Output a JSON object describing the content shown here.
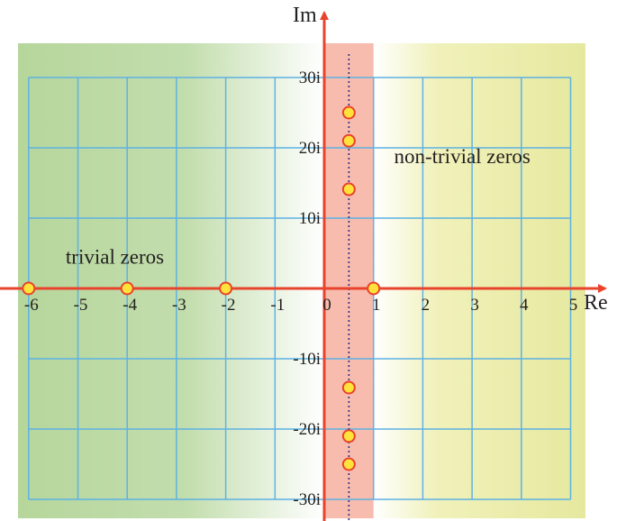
{
  "chart_data": {
    "type": "scatter",
    "title": "",
    "xlabel": "Re",
    "ylabel": "Im",
    "xlim": [
      -6,
      5
    ],
    "ylim": [
      -30,
      30
    ],
    "grid": true,
    "x_ticks": [
      {
        "value": -6,
        "label": "-6"
      },
      {
        "value": -5,
        "label": "-5"
      },
      {
        "value": -4,
        "label": "-4"
      },
      {
        "value": -3,
        "label": "-3"
      },
      {
        "value": -2,
        "label": "-2"
      },
      {
        "value": -1,
        "label": "-1"
      },
      {
        "value": 0,
        "label": "0"
      },
      {
        "value": 1,
        "label": "1"
      },
      {
        "value": 2,
        "label": "2"
      },
      {
        "value": 3,
        "label": "3"
      },
      {
        "value": 4,
        "label": "4"
      },
      {
        "value": 5,
        "label": "5"
      }
    ],
    "y_ticks": [
      {
        "value": 30,
        "label": "30i"
      },
      {
        "value": 20,
        "label": "20i"
      },
      {
        "value": 10,
        "label": "10i"
      },
      {
        "value": -10,
        "label": "-10i"
      },
      {
        "value": -20,
        "label": "-20i"
      },
      {
        "value": -30,
        "label": "-30i"
      }
    ],
    "regions": [
      {
        "name": "trivial-region",
        "x_range": [
          -6,
          0
        ],
        "color": "#a9cf8a"
      },
      {
        "name": "critical-strip",
        "x_range": [
          0,
          1
        ],
        "color": "#f4a593"
      },
      {
        "name": "non-trivial-region",
        "x_range": [
          1,
          5.3
        ],
        "color": "#eaeb9c"
      }
    ],
    "critical_line_x": 0.5,
    "series": [
      {
        "group": "trivial",
        "points": [
          [
            -6,
            0
          ],
          [
            -4,
            0
          ],
          [
            -2,
            0
          ]
        ]
      },
      {
        "group": "pole",
        "points": [
          [
            1,
            0
          ]
        ]
      },
      {
        "group": "non-trivial",
        "points": [
          [
            0.5,
            25.0
          ],
          [
            0.5,
            21.0
          ],
          [
            0.5,
            14.1
          ],
          [
            0.5,
            -14.1
          ],
          [
            0.5,
            -21.0
          ],
          [
            0.5,
            -25.0
          ]
        ]
      }
    ],
    "annotations": [
      {
        "text": "trivial zeros",
        "x": -4.25,
        "y": 3.5
      },
      {
        "text": "non-trivial zeros",
        "x": 2.8,
        "y": 17.8
      }
    ],
    "colors": {
      "axis": "#e8432c",
      "grid": "#5db2e4",
      "point_fill": "#ffe23a",
      "point_stroke": "#e8432c",
      "critical_line": "#2d2e83"
    }
  }
}
